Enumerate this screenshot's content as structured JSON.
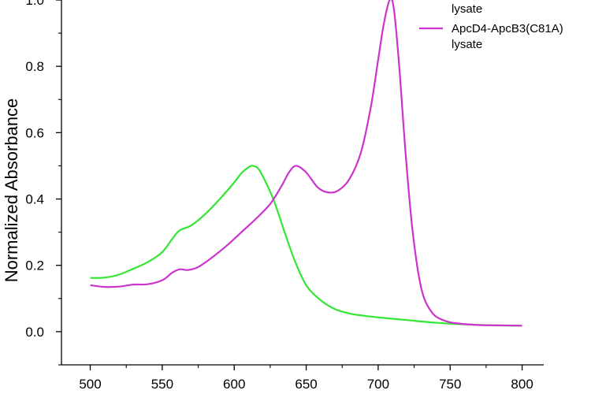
{
  "chart_data": {
    "type": "line",
    "title": "",
    "xlabel": "",
    "ylabel": "Normalized Absorbance",
    "xlim": [
      480,
      815
    ],
    "ylim": [
      -0.1,
      1.0
    ],
    "xticks": [
      500,
      550,
      600,
      650,
      700,
      750,
      800
    ],
    "yticks": [
      0.0,
      0.2,
      0.4,
      0.6,
      0.8,
      1.0
    ],
    "xtick_labels": [
      "500",
      "550",
      "600",
      "650",
      "700",
      "750",
      "800"
    ],
    "ytick_labels": [
      "0.0",
      "0.2",
      "0.4",
      "0.6",
      "0.8",
      "1.0"
    ],
    "grid": false,
    "legend_position": "top-right",
    "legend_entries": [
      {
        "text": "lysate",
        "color": "#33e633"
      },
      {
        "text": "ApcD4-ApcB3(C81A)",
        "text2": "lysate",
        "color": "#cc33cc"
      }
    ],
    "series": [
      {
        "color": "#33e633",
        "points": [
          [
            500,
            0.162
          ],
          [
            510,
            0.163
          ],
          [
            520,
            0.172
          ],
          [
            530,
            0.19
          ],
          [
            540,
            0.21
          ],
          [
            550,
            0.24
          ],
          [
            557,
            0.28
          ],
          [
            562,
            0.305
          ],
          [
            570,
            0.32
          ],
          [
            580,
            0.355
          ],
          [
            590,
            0.4
          ],
          [
            600,
            0.45
          ],
          [
            605,
            0.478
          ],
          [
            610,
            0.496
          ],
          [
            613,
            0.5
          ],
          [
            617,
            0.49
          ],
          [
            622,
            0.45
          ],
          [
            628,
            0.39
          ],
          [
            635,
            0.3
          ],
          [
            642,
            0.215
          ],
          [
            650,
            0.14
          ],
          [
            660,
            0.095
          ],
          [
            670,
            0.068
          ],
          [
            680,
            0.055
          ],
          [
            690,
            0.048
          ],
          [
            700,
            0.043
          ],
          [
            720,
            0.035
          ],
          [
            740,
            0.027
          ],
          [
            760,
            0.022
          ],
          [
            780,
            0.019
          ],
          [
            800,
            0.018
          ]
        ]
      },
      {
        "color": "#cc33cc",
        "points": [
          [
            500,
            0.14
          ],
          [
            510,
            0.135
          ],
          [
            520,
            0.136
          ],
          [
            530,
            0.142
          ],
          [
            540,
            0.143
          ],
          [
            550,
            0.155
          ],
          [
            557,
            0.178
          ],
          [
            562,
            0.188
          ],
          [
            568,
            0.186
          ],
          [
            575,
            0.195
          ],
          [
            585,
            0.225
          ],
          [
            595,
            0.26
          ],
          [
            605,
            0.3
          ],
          [
            615,
            0.34
          ],
          [
            625,
            0.385
          ],
          [
            633,
            0.44
          ],
          [
            638,
            0.48
          ],
          [
            643,
            0.5
          ],
          [
            650,
            0.48
          ],
          [
            658,
            0.435
          ],
          [
            665,
            0.42
          ],
          [
            672,
            0.425
          ],
          [
            680,
            0.46
          ],
          [
            688,
            0.54
          ],
          [
            695,
            0.68
          ],
          [
            700,
            0.82
          ],
          [
            704,
            0.93
          ],
          [
            708,
            1.0
          ],
          [
            711,
            0.97
          ],
          [
            715,
            0.78
          ],
          [
            719,
            0.54
          ],
          [
            724,
            0.3
          ],
          [
            730,
            0.13
          ],
          [
            737,
            0.06
          ],
          [
            745,
            0.035
          ],
          [
            755,
            0.025
          ],
          [
            770,
            0.02
          ],
          [
            785,
            0.019
          ],
          [
            800,
            0.018
          ]
        ]
      }
    ]
  }
}
